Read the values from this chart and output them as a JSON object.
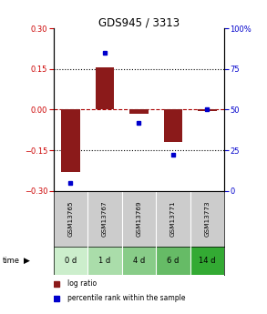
{
  "title": "GDS945 / 3313",
  "samples": [
    "GSM13765",
    "GSM13767",
    "GSM13769",
    "GSM13771",
    "GSM13773"
  ],
  "time_labels": [
    "0 d",
    "1 d",
    "4 d",
    "6 d",
    "14 d"
  ],
  "log_ratios": [
    -0.23,
    0.155,
    -0.015,
    -0.12,
    -0.005
  ],
  "percentile_ranks": [
    5,
    85,
    42,
    22,
    50
  ],
  "ylim_left": [
    -0.3,
    0.3
  ],
  "ylim_right": [
    0,
    100
  ],
  "yticks_left": [
    -0.3,
    -0.15,
    0,
    0.15,
    0.3
  ],
  "yticks_right": [
    0,
    25,
    50,
    75,
    100
  ],
  "ytick_right_labels": [
    "0",
    "25",
    "50",
    "75",
    "100%"
  ],
  "bar_color": "#8B1A1A",
  "dot_color": "#0000CC",
  "dotted_line_color": "#000000",
  "zero_line_color": "#AA0000",
  "bg_color": "#FFFFFF",
  "plot_bg": "#FFFFFF",
  "header_bg": "#CCCCCC",
  "time_colors": [
    "#CCEECC",
    "#AADDAA",
    "#88CC88",
    "#66BB66",
    "#33AA33"
  ],
  "left_axis_color": "#CC0000",
  "right_axis_color": "#0000CC"
}
